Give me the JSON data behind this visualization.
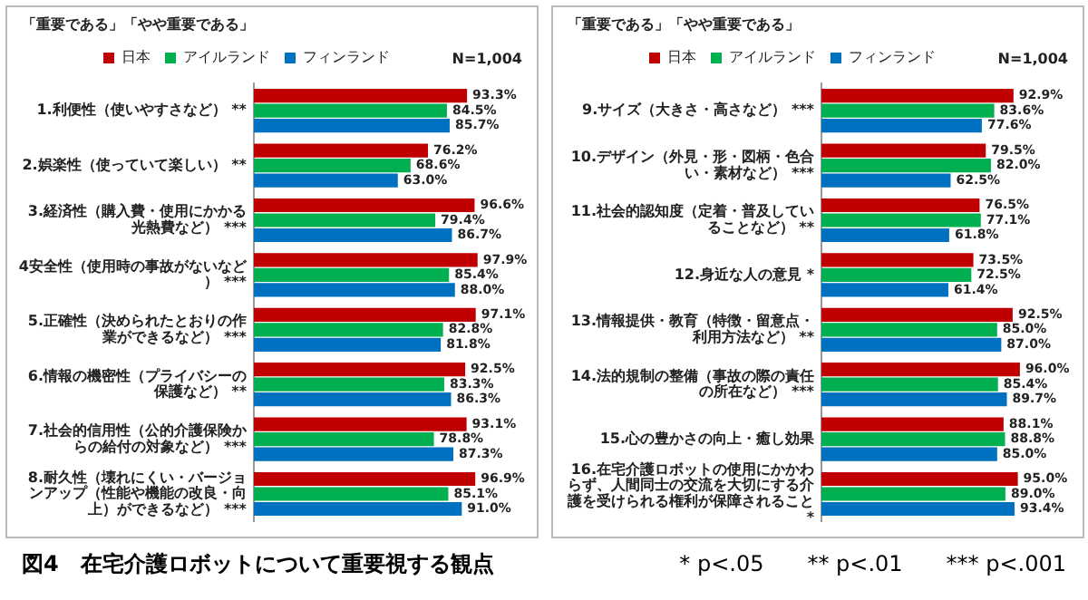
{
  "chart_data": [
    {
      "type": "bar",
      "orientation": "horizontal",
      "title": "図4　在宅介護ロボットについて重要視する観点",
      "subtitle": "「重要である」「やや重要である」",
      "legend": "top",
      "grid": false,
      "tick_labels": "y",
      "categories": [
        "1.利便性（使いやすさなど）\n**",
        "2.娯楽性（使っていて楽しい）\n**",
        "3.経済性（購入費・使用にかかる光熱費など）\n***",
        "4安全性（使用時の事故がないなど）\n***",
        "5.正確性（決められたとおりの作業ができるなど）\n***",
        "6.情報の機密性（プライバシーの保護など）\n**",
        "7.社会的信用性（公的介護保険からの給付の対象など）\n***",
        "8.耐久性（壊れにくい・バージョンアップ（性能や機能の改良・向上）ができるなど）\n***"
      ],
      "series": [
        {
          "name": "日本",
          "color": "#c00000",
          "values": [
            93.3,
            76.2,
            96.6,
            97.9,
            97.1,
            92.5,
            93.1,
            96.9
          ],
          "value_labels": [
            "93.3%",
            "76.2%",
            "96.6%",
            "97.9%",
            "97.1%",
            "92.5%",
            "93.1%",
            "96.9%"
          ]
        },
        {
          "name": "アイルランド",
          "color": "#00b050",
          "values": [
            84.5,
            68.6,
            79.4,
            85.4,
            82.8,
            83.3,
            78.8,
            85.1
          ],
          "value_labels": [
            "84.5%",
            "68.6%",
            "79.4%",
            "85.4%",
            "82.8%",
            "83.3%",
            "78.8%",
            "85.1%"
          ]
        },
        {
          "name": "フィンランド",
          "color": "#0070c0",
          "values": [
            85.7,
            63.0,
            86.7,
            88.0,
            81.8,
            86.3,
            87.3,
            91.0
          ],
          "value_labels": [
            "85.7%",
            "63.0%",
            "86.7%",
            "88.0%",
            "81.8%",
            "86.3%",
            "87.3%",
            "91.0%"
          ]
        }
      ],
      "annotations": [
        "N=1,004"
      ]
    },
    {
      "type": "bar",
      "orientation": "horizontal",
      "subtitle": "「重要である」「やや重要である」",
      "legend": "top",
      "grid": false,
      "tick_labels": "y",
      "categories": [
        "9.サイズ（大きさ・高さなど）\n***",
        "10.デザイン（外見・形・図柄・色合い・素材など）\n***",
        "11.社会的認知度（定着・普及していることなど）\n**",
        "12.身近な人の意見\n*",
        "13.情報提供・教育（特徴・留意点・利用方法など）\n**",
        "14.法的規制の整備（事故の際の責任の所在など）\n***",
        "15.心の豊かさの向上・癒し効果",
        "16.在宅介護ロボットの使用にかかわらず、人間同士の交流を大切にする介護を受けられる権利が保障されること\n*"
      ],
      "series": [
        {
          "name": "日本",
          "color": "#c00000",
          "values": [
            92.9,
            79.5,
            76.5,
            73.5,
            92.5,
            96.0,
            88.1,
            95.0
          ],
          "value_labels": [
            "92.9%",
            "79.5%",
            "76.5%",
            "73.5%",
            "92.5%",
            "96.0%",
            "88.1%",
            "95.0%"
          ]
        },
        {
          "name": "アイルランド",
          "color": "#00b050",
          "values": [
            83.6,
            82.0,
            77.1,
            72.5,
            85.0,
            85.4,
            88.8,
            89.0
          ],
          "value_labels": [
            "83.6%",
            "82.0%",
            "77.1%",
            "72.5%",
            "85.0%",
            "85.4%",
            "88.8%",
            "89.0%"
          ]
        },
        {
          "name": "フィンランド",
          "color": "#0070c0",
          "values": [
            77.6,
            62.5,
            61.8,
            61.4,
            87.0,
            89.7,
            85.0,
            93.4
          ],
          "value_labels": [
            "77.6%",
            "62.5%",
            "61.8%",
            "61.4%",
            "87.0%",
            "89.7%",
            "85.0%",
            "93.4%"
          ]
        }
      ],
      "annotations": [
        "N=1,004",
        "* p<.05　　** p<.01　　*** p<.001"
      ]
    }
  ]
}
